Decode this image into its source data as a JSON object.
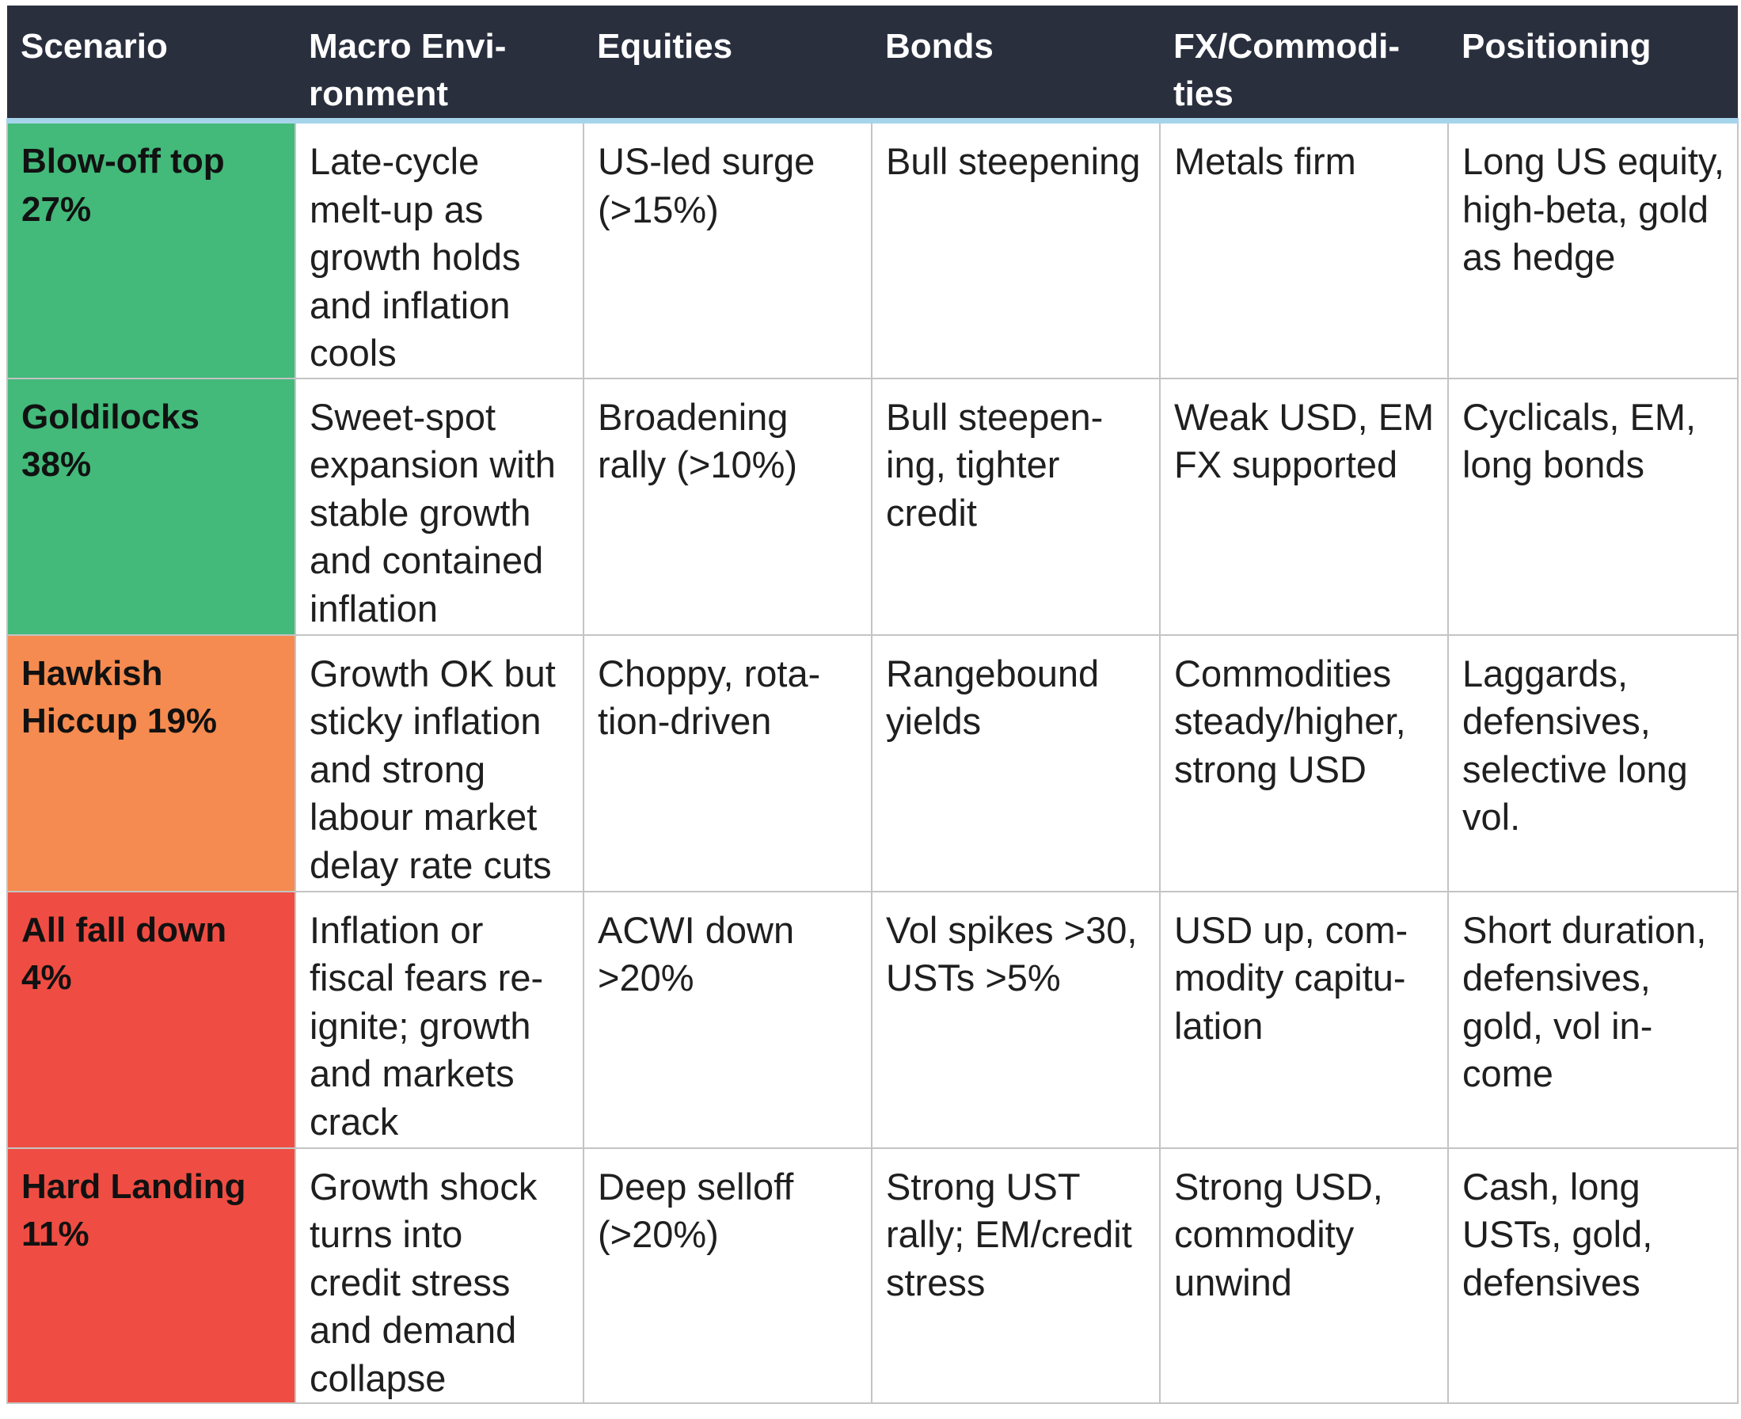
{
  "table": {
    "headers": [
      "Scenario",
      "Macro Envi-\nronment",
      "Equities",
      "Bonds",
      "FX/Commodi-\nties",
      "Positioning"
    ],
    "rows": [
      {
        "scenario": "Blow-off top\n27%",
        "color": "#43b97a",
        "macro": "Late-cycle\nmelt-up as\ngrowth holds\nand inflation\ncools",
        "equities": "US-led surge\n(>15%)",
        "bonds": "Bull steepening",
        "fx": "Metals firm",
        "positioning": "Long US equity,\nhigh-beta, gold\nas hedge"
      },
      {
        "scenario": "Goldilocks\n38%",
        "color": "#43b97a",
        "macro": "Sweet-spot\nexpansion with\nstable growth\nand contained\ninflation",
        "equities": "Broadening\nrally (>10%)",
        "bonds": "Bull steepen-\ning, tighter\ncredit",
        "fx": "Weak USD, EM\nFX supported",
        "positioning": "Cyclicals, EM,\nlong bonds"
      },
      {
        "scenario": "Hawkish\nHiccup 19%",
        "color": "#f58b50",
        "macro": "Growth OK but\nsticky inflation\nand strong\nlabour market\ndelay rate cuts",
        "equities": "Choppy, rota-\ntion-driven",
        "bonds": "Rangebound\nyields",
        "fx": "Commodities\nsteady/higher,\nstrong USD",
        "positioning": "Laggards,\ndefensives,\nselective long\nvol."
      },
      {
        "scenario": "All fall down\n4%",
        "color": "#ef4d43",
        "macro": "Inflation or\nfiscal fears re-\nignite; growth\nand markets\ncrack",
        "equities": "ACWI down\n>20%",
        "bonds": "Vol spikes >30,\nUSTs >5%",
        "fx": "USD up, com-\nmodity capitu-\nlation",
        "positioning": "Short duration,\ndefensives,\ngold, vol in-\ncome"
      },
      {
        "scenario": "Hard Landing\n11%",
        "color": "#ef4d43",
        "macro": "Growth shock\nturns into\ncredit stress\nand demand\ncollapse",
        "equities": "Deep selloff\n(>20%)",
        "bonds": "Strong UST\nrally; EM/credit\nstress",
        "fx": "Strong USD,\ncommodity\nunwind",
        "positioning": "Cash, long\nUSTs, gold,\ndefensives"
      }
    ]
  }
}
